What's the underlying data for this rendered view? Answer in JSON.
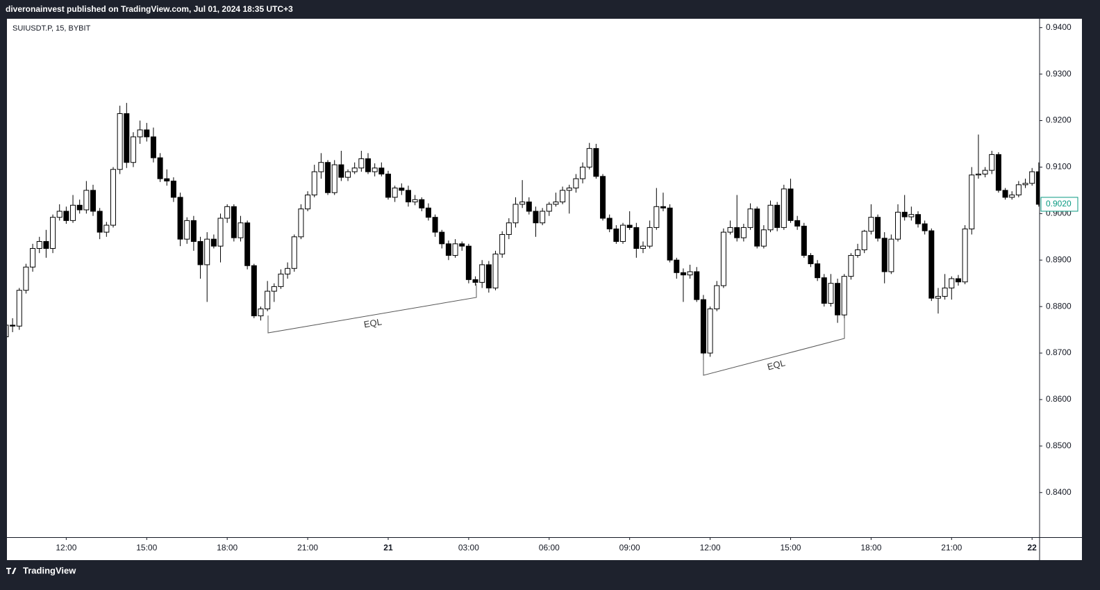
{
  "header": {
    "text": "diveronainvest published on TradingView.com, Jul 01, 2024 18:35 UTC+3"
  },
  "footer": {
    "brand": "TradingView"
  },
  "chart_data": {
    "type": "candlestick",
    "title": "SUIUSDT.P, 15, BYBIT",
    "up_color": "#ffffff",
    "down_color": "#000000",
    "wick_color": "#000000",
    "last_color": "#089981",
    "grid": false,
    "xlim": [
      9.79,
      48.28
    ],
    "ylim": [
      0.8304,
      0.9419
    ],
    "yticks": [
      {
        "value": 0.84,
        "label": "0.8400"
      },
      {
        "value": 0.85,
        "label": "0.8500"
      },
      {
        "value": 0.86,
        "label": "0.8600"
      },
      {
        "value": 0.87,
        "label": "0.8700"
      },
      {
        "value": 0.88,
        "label": "0.8800"
      },
      {
        "value": 0.89,
        "label": "0.8900"
      },
      {
        "value": 0.9,
        "label": "0.9000"
      },
      {
        "value": 0.91,
        "label": "0.9100"
      },
      {
        "value": 0.92,
        "label": "0.9200"
      },
      {
        "value": 0.93,
        "label": "0.9300"
      },
      {
        "value": 0.94,
        "label": "0.9400"
      }
    ],
    "xticks": [
      {
        "value": 12,
        "label": "12:00"
      },
      {
        "value": 15,
        "label": "15:00"
      },
      {
        "value": 18,
        "label": "18:00"
      },
      {
        "value": 21,
        "label": "21:00"
      },
      {
        "value": 24,
        "label": "21"
      },
      {
        "value": 27,
        "label": "03:00"
      },
      {
        "value": 30,
        "label": "06:00"
      },
      {
        "value": 33,
        "label": "09:00"
      },
      {
        "value": 36,
        "label": "12:00"
      },
      {
        "value": 39,
        "label": "15:00"
      },
      {
        "value": 42,
        "label": "18:00"
      },
      {
        "value": 45,
        "label": "21:00"
      },
      {
        "value": 48,
        "label": "22"
      }
    ],
    "last_price": {
      "value": 0.902,
      "label": "0.9020"
    },
    "annotations": [
      {
        "text": "EQL"
      },
      {
        "text": "EQL"
      }
    ],
    "x": [
      9.75,
      10,
      10.25,
      10.5,
      10.75,
      11,
      11.25,
      11.5,
      11.75,
      12,
      12.25,
      12.5,
      12.75,
      13,
      13.25,
      13.5,
      13.75,
      14,
      14.25,
      14.5,
      14.75,
      15,
      15.25,
      15.5,
      15.75,
      16,
      16.25,
      16.5,
      16.75,
      17,
      17.25,
      17.5,
      17.75,
      18,
      18.25,
      18.5,
      18.75,
      19,
      19.25,
      19.5,
      19.75,
      20,
      20.25,
      20.5,
      20.75,
      21,
      21.25,
      21.5,
      21.75,
      22,
      22.25,
      22.5,
      22.75,
      23,
      23.25,
      23.5,
      23.75,
      24,
      24.25,
      24.5,
      24.75,
      25,
      25.25,
      25.5,
      25.75,
      26,
      26.25,
      26.5,
      26.75,
      27,
      27.25,
      27.5,
      27.75,
      28,
      28.25,
      28.5,
      28.75,
      29,
      29.25,
      29.5,
      29.75,
      30,
      30.25,
      30.5,
      30.75,
      31,
      31.25,
      31.5,
      31.75,
      32,
      32.25,
      32.5,
      32.75,
      33,
      33.25,
      33.5,
      33.75,
      34,
      34.25,
      34.5,
      34.75,
      35,
      35.25,
      35.5,
      35.75,
      36,
      36.25,
      36.5,
      36.75,
      37,
      37.25,
      37.5,
      37.75,
      38,
      38.25,
      38.5,
      38.75,
      39,
      39.25,
      39.5,
      39.75,
      40,
      40.25,
      40.5,
      40.75,
      41,
      41.25,
      41.5,
      41.75,
      42,
      42.25,
      42.5,
      42.75,
      43,
      43.25,
      43.5,
      43.75,
      44,
      44.25,
      44.5,
      44.75,
      45,
      45.25,
      45.5,
      45.75,
      46,
      46.25,
      46.5,
      46.75,
      47,
      47.25,
      47.5,
      47.75,
      48,
      48.25
    ],
    "open": [
      0.8735,
      0.876,
      0.8758,
      0.8835,
      0.8885,
      0.8925,
      0.894,
      0.8925,
      0.8992,
      0.9005,
      0.8985,
      0.9018,
      0.9008,
      0.905,
      0.9005,
      0.896,
      0.8975,
      0.9095,
      0.9215,
      0.911,
      0.9165,
      0.918,
      0.9165,
      0.912,
      0.9075,
      0.907,
      0.9035,
      0.8945,
      0.8985,
      0.894,
      0.889,
      0.8945,
      0.893,
      0.899,
      0.9015,
      0.8948,
      0.898,
      0.8888,
      0.878,
      0.8795,
      0.8833,
      0.8843,
      0.887,
      0.8882,
      0.895,
      0.901,
      0.904,
      0.909,
      0.911,
      0.9045,
      0.9105,
      0.9078,
      0.909,
      0.9098,
      0.9118,
      0.909,
      0.9098,
      0.9085,
      0.9035,
      0.9055,
      0.905,
      0.9025,
      0.903,
      0.9012,
      0.8992,
      0.896,
      0.8935,
      0.891,
      0.8935,
      0.893,
      0.8858,
      0.8852,
      0.889,
      0.884,
      0.8913,
      0.8955,
      0.898,
      0.902,
      0.9025,
      0.9005,
      0.898,
      0.9005,
      0.902,
      0.9025,
      0.905,
      0.9055,
      0.9075,
      0.91,
      0.914,
      0.908,
      0.899,
      0.8967,
      0.894,
      0.8975,
      0.897,
      0.8925,
      0.893,
      0.897,
      0.9015,
      0.9012,
      0.89,
      0.8873,
      0.8868,
      0.8875,
      0.8815,
      0.87,
      0.8795,
      0.8845,
      0.896,
      0.897,
      0.8948,
      0.897,
      0.901,
      0.893,
      0.8965,
      0.9018,
      0.897,
      0.9053,
      0.8985,
      0.8973,
      0.891,
      0.8892,
      0.8862,
      0.8807,
      0.885,
      0.8782,
      0.8865,
      0.891,
      0.8922,
      0.8962,
      0.8992,
      0.8947,
      0.8875,
      0.8945,
      0.9003,
      0.8993,
      0.8998,
      0.8978,
      0.8963,
      0.8818,
      0.8822,
      0.884,
      0.886,
      0.8853,
      0.8967,
      0.9083,
      0.9085,
      0.9093,
      0.9127,
      0.905,
      0.9035,
      0.904,
      0.9062,
      0.9065,
      0.909
    ],
    "high": [
      0.877,
      0.8775,
      0.884,
      0.8892,
      0.8935,
      0.895,
      0.8965,
      0.8998,
      0.902,
      0.9015,
      0.904,
      0.903,
      0.907,
      0.9062,
      0.9012,
      0.8982,
      0.91,
      0.9232,
      0.9238,
      0.9175,
      0.92,
      0.9195,
      0.9185,
      0.913,
      0.9095,
      0.9078,
      0.9045,
      0.8992,
      0.8995,
      0.895,
      0.896,
      0.8955,
      0.9,
      0.902,
      0.902,
      0.8995,
      0.8985,
      0.8892,
      0.88,
      0.8855,
      0.885,
      0.888,
      0.8895,
      0.8955,
      0.902,
      0.9048,
      0.9105,
      0.913,
      0.9115,
      0.9115,
      0.9135,
      0.9095,
      0.911,
      0.9135,
      0.913,
      0.9108,
      0.911,
      0.9092,
      0.906,
      0.9065,
      0.906,
      0.904,
      0.9035,
      0.9022,
      0.8998,
      0.8965,
      0.8942,
      0.8945,
      0.894,
      0.8935,
      0.8865,
      0.89,
      0.8898,
      0.892,
      0.8962,
      0.899,
      0.9035,
      0.9072,
      0.9035,
      0.9015,
      0.9012,
      0.9025,
      0.9045,
      0.9058,
      0.9062,
      0.9085,
      0.911,
      0.9152,
      0.915,
      0.9085,
      0.8998,
      0.8975,
      0.898,
      0.9005,
      0.898,
      0.894,
      0.8985,
      0.9055,
      0.9045,
      0.902,
      0.8905,
      0.8882,
      0.889,
      0.8885,
      0.8825,
      0.88,
      0.8855,
      0.8968,
      0.8985,
      0.904,
      0.8978,
      0.9022,
      0.9015,
      0.8975,
      0.9028,
      0.9025,
      0.9062,
      0.9075,
      0.8995,
      0.898,
      0.8915,
      0.89,
      0.887,
      0.887,
      0.886,
      0.887,
      0.8915,
      0.8935,
      0.8965,
      0.902,
      0.8998,
      0.896,
      0.8955,
      0.902,
      0.904,
      0.9015,
      0.9005,
      0.8985,
      0.8968,
      0.884,
      0.887,
      0.8865,
      0.8868,
      0.8975,
      0.91,
      0.917,
      0.91,
      0.9135,
      0.9132,
      0.9055,
      0.9048,
      0.907,
      0.9075,
      0.9098,
      0.911
    ],
    "low": [
      0.8725,
      0.8745,
      0.875,
      0.8828,
      0.8875,
      0.8915,
      0.8905,
      0.8915,
      0.8985,
      0.8978,
      0.898,
      0.9,
      0.9,
      0.8995,
      0.8945,
      0.895,
      0.897,
      0.9085,
      0.9098,
      0.91,
      0.915,
      0.9155,
      0.911,
      0.9068,
      0.906,
      0.9025,
      0.893,
      0.8935,
      0.892,
      0.886,
      0.881,
      0.8925,
      0.8895,
      0.898,
      0.894,
      0.894,
      0.888,
      0.8775,
      0.877,
      0.879,
      0.881,
      0.8838,
      0.886,
      0.8875,
      0.8945,
      0.9005,
      0.9035,
      0.9075,
      0.904,
      0.904,
      0.907,
      0.907,
      0.9085,
      0.909,
      0.9085,
      0.908,
      0.908,
      0.903,
      0.9025,
      0.904,
      0.9015,
      0.9018,
      0.9005,
      0.8985,
      0.895,
      0.8925,
      0.89,
      0.8905,
      0.892,
      0.885,
      0.8845,
      0.884,
      0.883,
      0.8835,
      0.8905,
      0.8945,
      0.897,
      0.9012,
      0.8998,
      0.895,
      0.8975,
      0.8995,
      0.9015,
      0.902,
      0.9,
      0.9045,
      0.9065,
      0.9095,
      0.9075,
      0.8985,
      0.896,
      0.8935,
      0.8935,
      0.8965,
      0.8905,
      0.8915,
      0.8925,
      0.8965,
      0.9005,
      0.8895,
      0.886,
      0.881,
      0.886,
      0.881,
      0.8685,
      0.8692,
      0.879,
      0.884,
      0.8955,
      0.894,
      0.894,
      0.8965,
      0.8925,
      0.8925,
      0.896,
      0.8962,
      0.8965,
      0.898,
      0.8965,
      0.8905,
      0.8885,
      0.8855,
      0.88,
      0.88,
      0.8765,
      0.8775,
      0.8858,
      0.8905,
      0.8915,
      0.8955,
      0.894,
      0.885,
      0.887,
      0.894,
      0.8985,
      0.8985,
      0.897,
      0.8955,
      0.8812,
      0.8785,
      0.8815,
      0.8815,
      0.8845,
      0.8848,
      0.8955,
      0.9075,
      0.9078,
      0.9085,
      0.9045,
      0.903,
      0.903,
      0.9035,
      0.9055,
      0.906,
      0.9015
    ],
    "close": [
      0.876,
      0.8758,
      0.8835,
      0.8885,
      0.8925,
      0.894,
      0.8925,
      0.8992,
      0.9005,
      0.8985,
      0.9018,
      0.9008,
      0.905,
      0.9005,
      0.896,
      0.8975,
      0.9095,
      0.9215,
      0.911,
      0.9165,
      0.918,
      0.9165,
      0.912,
      0.9075,
      0.907,
      0.9035,
      0.8945,
      0.8985,
      0.894,
      0.889,
      0.8945,
      0.893,
      0.899,
      0.9015,
      0.8948,
      0.898,
      0.8888,
      0.878,
      0.8795,
      0.8833,
      0.8843,
      0.887,
      0.8882,
      0.895,
      0.901,
      0.904,
      0.909,
      0.911,
      0.9045,
      0.9105,
      0.9078,
      0.909,
      0.9098,
      0.9118,
      0.909,
      0.9098,
      0.9085,
      0.9035,
      0.9055,
      0.905,
      0.9025,
      0.903,
      0.9012,
      0.8992,
      0.896,
      0.8935,
      0.891,
      0.8935,
      0.893,
      0.8858,
      0.8852,
      0.889,
      0.884,
      0.8913,
      0.8955,
      0.898,
      0.902,
      0.9025,
      0.9005,
      0.898,
      0.9005,
      0.902,
      0.9025,
      0.905,
      0.9055,
      0.9075,
      0.91,
      0.914,
      0.908,
      0.899,
      0.8967,
      0.894,
      0.8975,
      0.897,
      0.8925,
      0.893,
      0.897,
      0.9015,
      0.9012,
      0.89,
      0.8873,
      0.8868,
      0.8875,
      0.8815,
      0.87,
      0.8795,
      0.8845,
      0.896,
      0.897,
      0.8948,
      0.897,
      0.901,
      0.893,
      0.8965,
      0.9018,
      0.897,
      0.9053,
      0.8985,
      0.8973,
      0.891,
      0.8892,
      0.8862,
      0.8807,
      0.885,
      0.8782,
      0.8865,
      0.891,
      0.8922,
      0.8962,
      0.8992,
      0.8947,
      0.8875,
      0.8945,
      0.9003,
      0.8993,
      0.8998,
      0.8978,
      0.8963,
      0.8818,
      0.8822,
      0.884,
      0.886,
      0.8853,
      0.8967,
      0.9083,
      0.9085,
      0.9093,
      0.9127,
      0.905,
      0.9035,
      0.904,
      0.9062,
      0.9065,
      0.909,
      0.902
    ]
  }
}
